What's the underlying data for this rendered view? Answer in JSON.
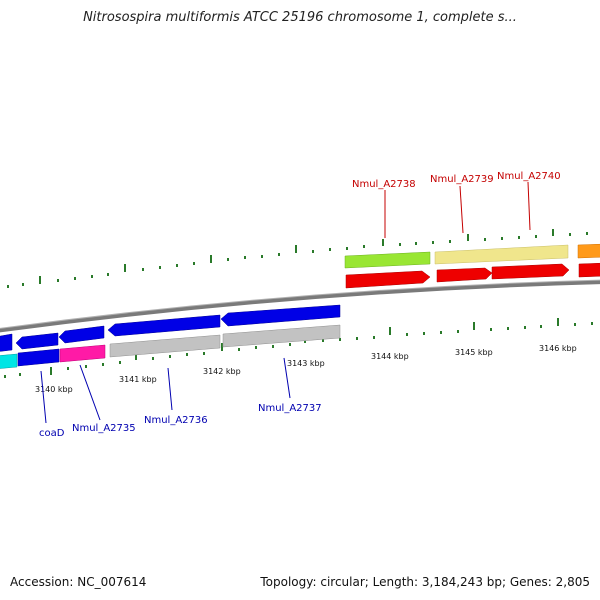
{
  "header": {
    "title": "Nitrosospira multiformis ATCC 25196 chromosome 1, complete s..."
  },
  "footer": {
    "accession": "Accession: NC_007614",
    "summary": "Topology: circular; Length: 3,184,243 bp; Genes: 2,805"
  },
  "map": {
    "ticks": [
      "3140 kbp",
      "3141 kbp",
      "3142 kbp",
      "3143 kbp",
      "3144 kbp",
      "3145 kbp",
      "3146 kbp"
    ],
    "genes_top": [
      "Nmul_A2738",
      "Nmul_A2739",
      "Nmul_A2740"
    ],
    "genes_bottom": [
      "coaD",
      "Nmul_A2735",
      "Nmul_A2736",
      "Nmul_A2737"
    ]
  },
  "colors": {
    "forward_cds": "#ff0000",
    "reverse_cds": "#0000ee",
    "backbone": "#808080",
    "tick_marks": "#2a7a2a",
    "top_label": "#c40000",
    "bottom_label": "#0000b0"
  }
}
